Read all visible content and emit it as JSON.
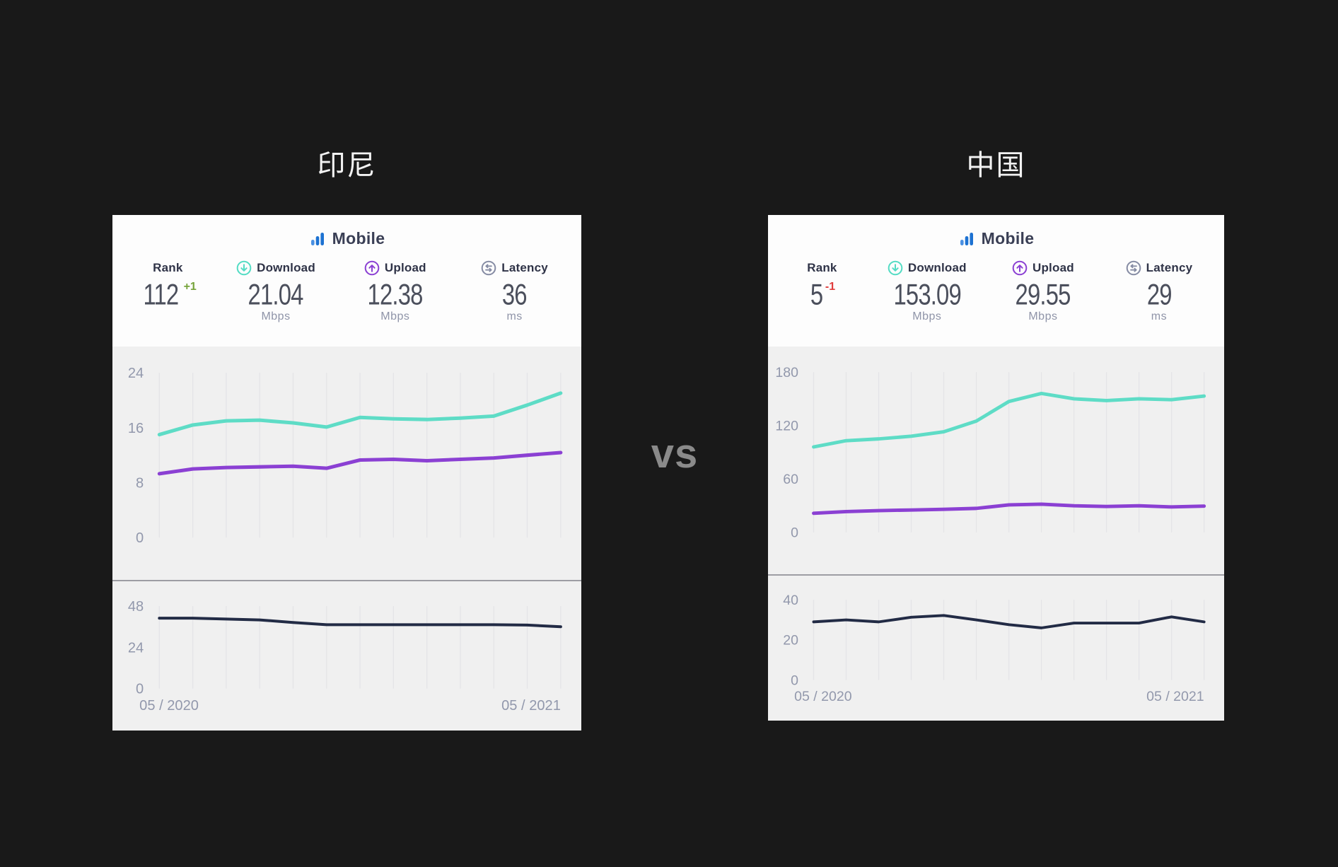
{
  "page": {
    "vs_label": "vs"
  },
  "colors": {
    "download_teal": "#5edcc6",
    "upload_purple": "#8b40d3",
    "latency_navy": "#222b45",
    "mobile_blue": "#1d72d2",
    "mobile_blue_light": "#4a90e2",
    "rank_up_green": "#76a33a",
    "rank_down_red": "#e03c3c",
    "vs_gray": "#8a8a8a"
  },
  "left": {
    "title": "印尼",
    "header": {
      "label": "Mobile"
    },
    "stats": {
      "rank": {
        "label": "Rank",
        "value": "112",
        "change": "+1"
      },
      "download": {
        "label": "Download",
        "value": "21.04",
        "unit": "Mbps"
      },
      "upload": {
        "label": "Upload",
        "value": "12.38",
        "unit": "Mbps"
      },
      "latency": {
        "label": "Latency",
        "value": "36",
        "unit": "ms"
      }
    }
  },
  "right": {
    "title": "中国",
    "header": {
      "label": "Mobile"
    },
    "stats": {
      "rank": {
        "label": "Rank",
        "value": "5",
        "change": "-1"
      },
      "download": {
        "label": "Download",
        "value": "153.09",
        "unit": "Mbps"
      },
      "upload": {
        "label": "Upload",
        "value": "29.55",
        "unit": "Mbps"
      },
      "latency": {
        "label": "Latency",
        "value": "29",
        "unit": "ms"
      }
    }
  },
  "chart_data": [
    {
      "type": "line",
      "title": "Indonesia mobile speed history",
      "x": [
        "05/2020",
        "06/2020",
        "07/2020",
        "08/2020",
        "09/2020",
        "10/2020",
        "11/2020",
        "12/2020",
        "01/2021",
        "02/2021",
        "03/2021",
        "04/2021",
        "05/2021"
      ],
      "series": [
        {
          "name": "Download (Mbps)",
          "color": "#5edcc6",
          "values": [
            15.0,
            16.4,
            17.0,
            17.1,
            16.7,
            16.1,
            17.5,
            17.3,
            17.2,
            17.4,
            17.7,
            19.3,
            21.04
          ]
        },
        {
          "name": "Upload (Mbps)",
          "color": "#8b40d3",
          "values": [
            9.3,
            10.0,
            10.2,
            10.3,
            10.4,
            10.1,
            11.3,
            11.4,
            11.2,
            11.4,
            11.6,
            12.0,
            12.38
          ]
        }
      ],
      "yticks": [
        0,
        8,
        16,
        24
      ],
      "ylim": [
        0,
        24
      ],
      "grid": "vertical-only",
      "legend": "none"
    },
    {
      "type": "line",
      "title": "Indonesia mobile latency history",
      "x": [
        "05/2020",
        "06/2020",
        "07/2020",
        "08/2020",
        "09/2020",
        "10/2020",
        "11/2020",
        "12/2020",
        "01/2021",
        "02/2021",
        "03/2021",
        "04/2021",
        "05/2021"
      ],
      "series": [
        {
          "name": "Latency (ms)",
          "color": "#222b45",
          "values": [
            41,
            41,
            40.5,
            40,
            38.5,
            37.2,
            37.2,
            37.2,
            37.2,
            37.2,
            37.2,
            37,
            36
          ]
        }
      ],
      "yticks": [
        0,
        24,
        48
      ],
      "ylim": [
        0,
        48
      ],
      "xlabel_left": "05 / 2020",
      "xlabel_right": "05 / 2021",
      "grid": "vertical-only",
      "legend": "none"
    },
    {
      "type": "line",
      "title": "China mobile speed history",
      "x": [
        "05/2020",
        "06/2020",
        "07/2020",
        "08/2020",
        "09/2020",
        "10/2020",
        "11/2020",
        "12/2020",
        "01/2021",
        "02/2021",
        "03/2021",
        "04/2021",
        "05/2021"
      ],
      "series": [
        {
          "name": "Download (Mbps)",
          "color": "#5edcc6",
          "values": [
            96,
            103,
            105,
            108,
            113,
            125,
            147,
            156,
            150,
            148,
            150,
            149,
            153.09
          ]
        },
        {
          "name": "Upload (Mbps)",
          "color": "#8b40d3",
          "values": [
            21.5,
            23.4,
            24.5,
            25.2,
            26,
            27,
            30.9,
            31.7,
            29.9,
            29.1,
            29.9,
            28.6,
            29.55
          ]
        }
      ],
      "yticks": [
        0,
        60,
        120,
        180
      ],
      "ylim": [
        0,
        180
      ],
      "grid": "vertical-only",
      "legend": "none"
    },
    {
      "type": "line",
      "title": "China mobile latency history",
      "x": [
        "05/2020",
        "06/2020",
        "07/2020",
        "08/2020",
        "09/2020",
        "10/2020",
        "11/2020",
        "12/2020",
        "01/2021",
        "02/2021",
        "03/2021",
        "04/2021",
        "05/2021"
      ],
      "series": [
        {
          "name": "Latency (ms)",
          "color": "#222b45",
          "values": [
            29,
            30,
            29,
            31.3,
            32.2,
            30,
            27.6,
            26,
            28.4,
            28.4,
            28.4,
            31.5,
            29
          ]
        }
      ],
      "yticks": [
        0,
        20,
        40
      ],
      "ylim": [
        0,
        40
      ],
      "xlabel_left": "05 / 2020",
      "xlabel_right": "05 / 2021",
      "grid": "vertical-only",
      "legend": "none"
    }
  ]
}
